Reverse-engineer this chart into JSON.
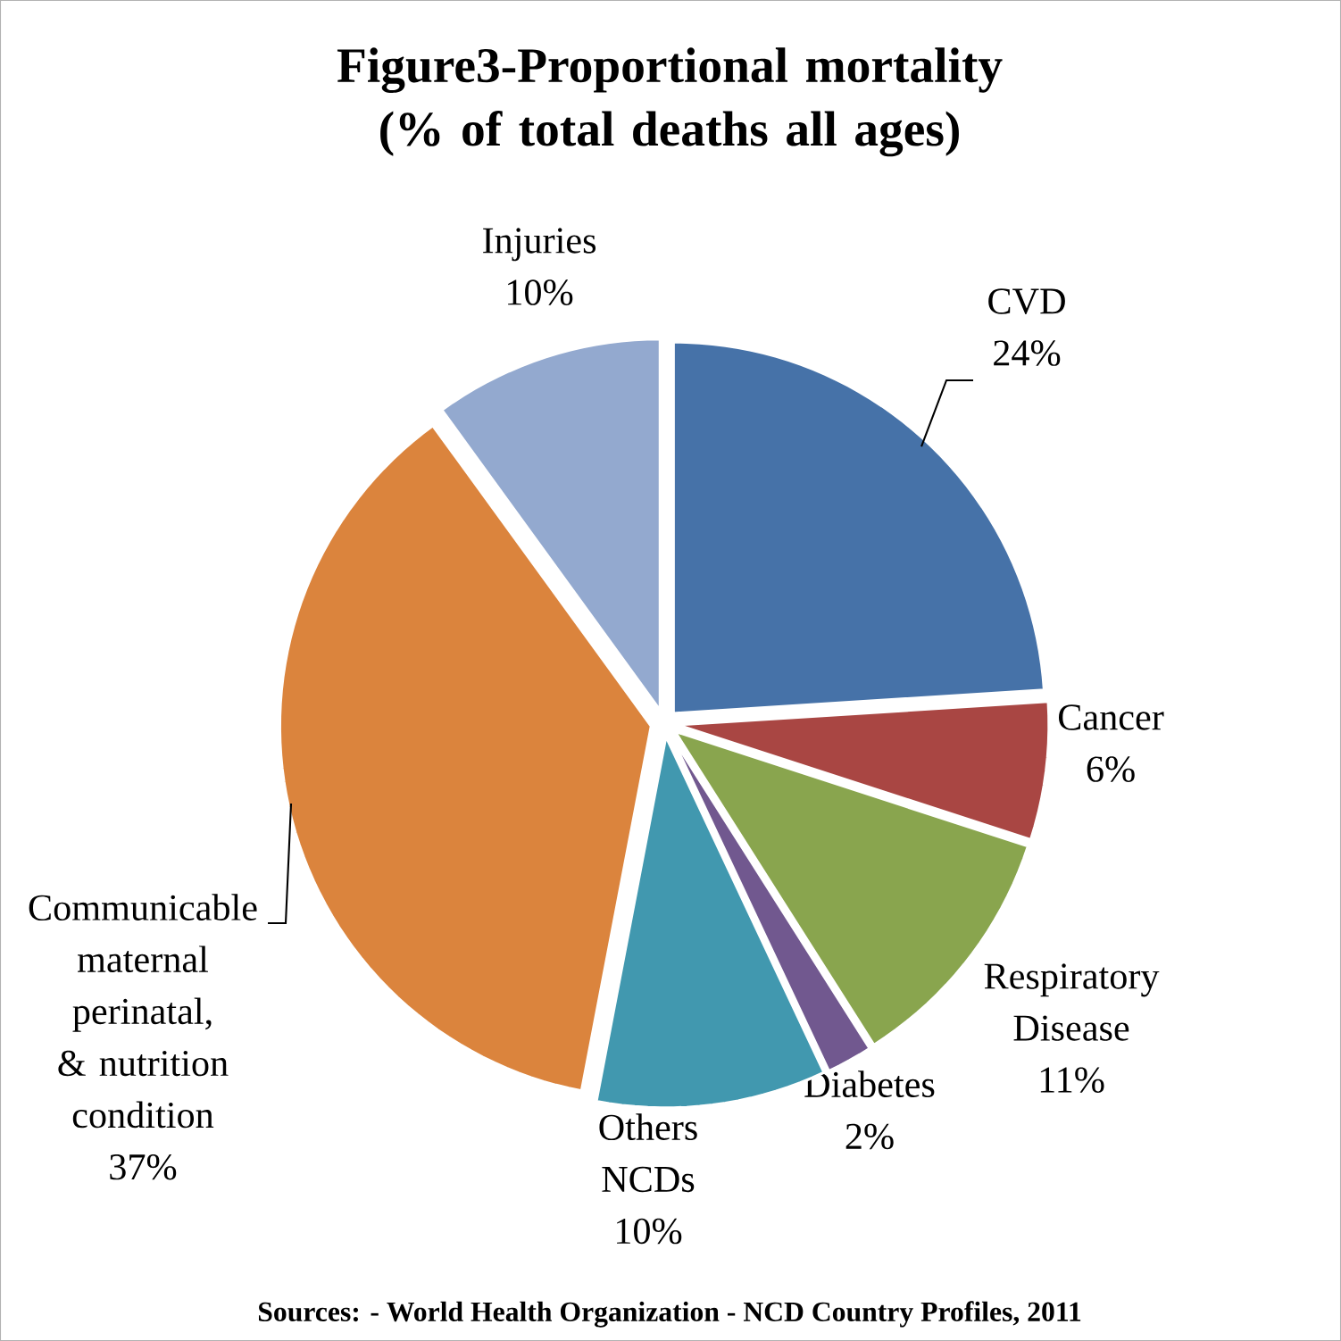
{
  "chart_data": {
    "type": "pie",
    "title": "Figure3-Proportional mortality (% of total deaths all ages)",
    "categories": [
      "CVD",
      "Cancer",
      "Respiratory Disease",
      "Diabetes",
      "Others NCDs",
      "Communicable maternal perinatal, & nutrition condition",
      "Injuries"
    ],
    "values": [
      24,
      6,
      11,
      2,
      10,
      37,
      10
    ],
    "value_labels": [
      "24%",
      "6%",
      "11%",
      "2%",
      "10%",
      "37%",
      "10%"
    ],
    "colors": [
      "#4672a8",
      "#a94643",
      "#89a54e",
      "#71588f",
      "#4198af",
      "#db843d",
      "#93a9cf"
    ],
    "annotations": [
      "Sources: - World Health Organization - NCD Country Profiles, 2011"
    ]
  }
}
